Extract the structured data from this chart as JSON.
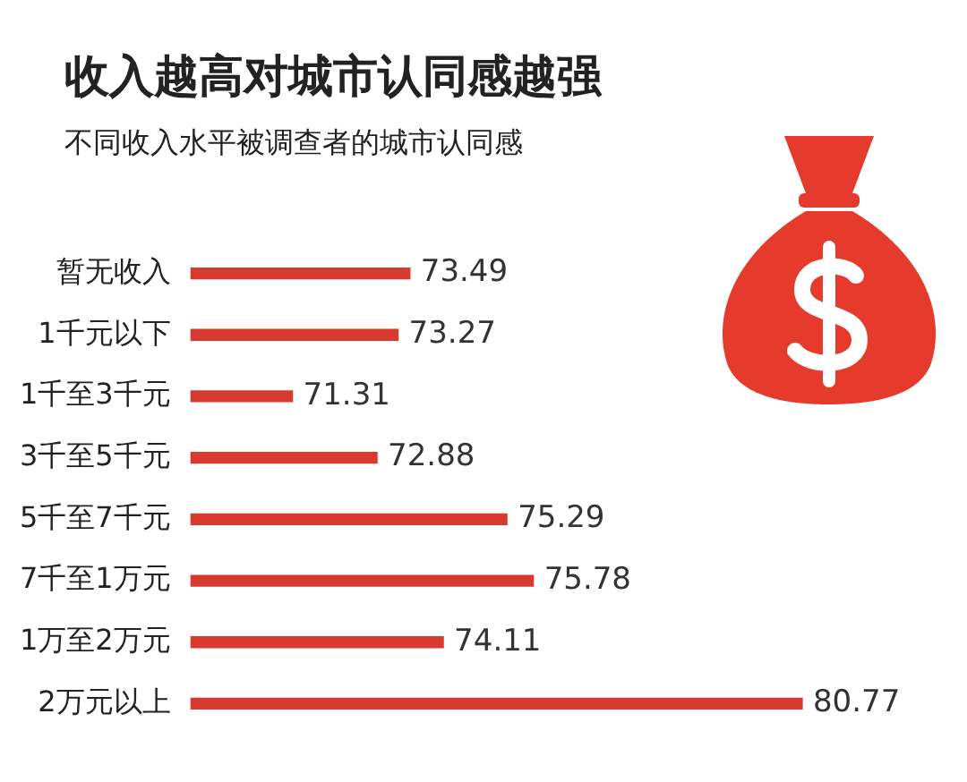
{
  "chart_data": {
    "type": "bar",
    "orientation": "horizontal",
    "title": "收入越高对城市认同感越强",
    "subtitle": "不同收入水平被调查者的城市认同感",
    "categories": [
      "暂无收入",
      "1千元以下",
      "1千至3千元",
      "3千至5千元",
      "5千至7千元",
      "7千至1万元",
      "1万至2万元",
      "2万元以上"
    ],
    "values": [
      73.49,
      73.27,
      71.31,
      72.88,
      75.29,
      75.78,
      74.11,
      80.77
    ],
    "color": "#d93a2f",
    "tick_labels": "y",
    "data_labels": true
  }
}
